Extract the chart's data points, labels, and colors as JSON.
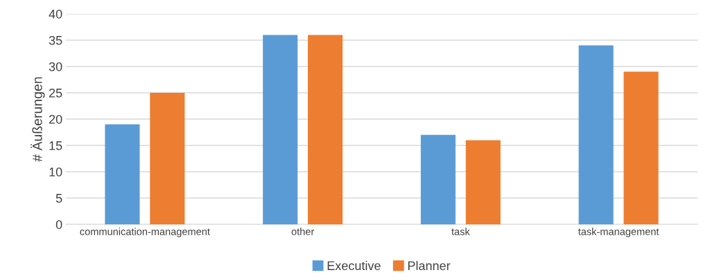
{
  "chart_data": {
    "type": "bar",
    "ylabel": "# Äußerungen",
    "categories": [
      "communication-management",
      "other",
      "task",
      "task-management"
    ],
    "series": [
      {
        "name": "Executive",
        "color": "#5b9bd5",
        "values": [
          19,
          36,
          17,
          34
        ]
      },
      {
        "name": "Planner",
        "color": "#ed7d31",
        "values": [
          25,
          36,
          16,
          29
        ]
      }
    ],
    "ylim": [
      0,
      40
    ],
    "yticks": [
      0,
      5,
      10,
      15,
      20,
      25,
      30,
      35,
      40
    ],
    "grid": "y",
    "legend": "bottom"
  }
}
